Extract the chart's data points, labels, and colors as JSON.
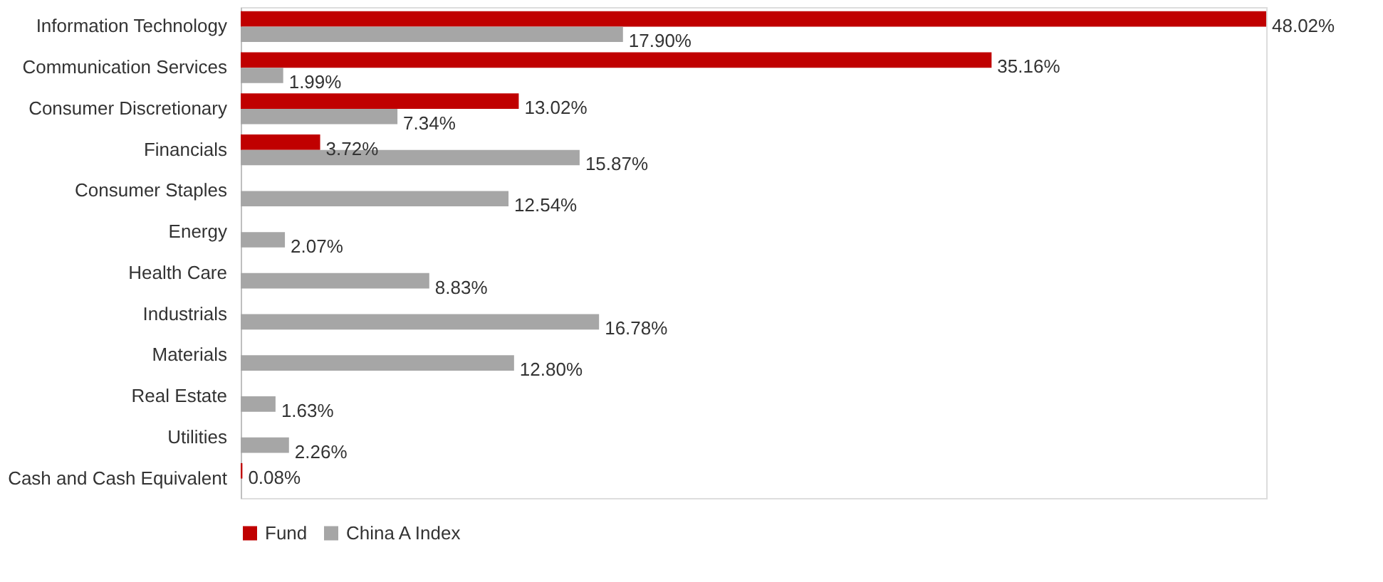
{
  "chart_data": {
    "type": "bar",
    "orientation": "horizontal",
    "tick_labels": "y",
    "legend": "bottom",
    "categories": [
      "Information Technology",
      "Communication Services",
      "Consumer Discretionary",
      "Financials",
      "Consumer Staples",
      "Energy",
      "Health Care",
      "Industrials",
      "Materials",
      "Real Estate",
      "Utilities",
      "Cash and Cash Equivalent"
    ],
    "series": [
      {
        "name": "Fund",
        "color": "#c00000",
        "values": [
          48.02,
          35.16,
          13.02,
          3.72,
          null,
          null,
          null,
          null,
          null,
          null,
          null,
          0.08
        ],
        "value_labels": [
          "48.02%",
          "35.16%",
          "13.02%",
          "3.72%",
          null,
          null,
          null,
          null,
          null,
          null,
          null,
          "0.08%"
        ]
      },
      {
        "name": "China A Index",
        "color": "#a6a6a6",
        "values": [
          17.9,
          1.99,
          7.34,
          15.87,
          12.54,
          2.07,
          8.83,
          16.78,
          12.8,
          1.63,
          2.26,
          null
        ],
        "value_labels": [
          "17.90%",
          "1.99%",
          "7.34%",
          "15.87%",
          "12.54%",
          "2.07%",
          "8.83%",
          "16.78%",
          "12.80%",
          "1.63%",
          "2.26%",
          null
        ]
      }
    ]
  }
}
